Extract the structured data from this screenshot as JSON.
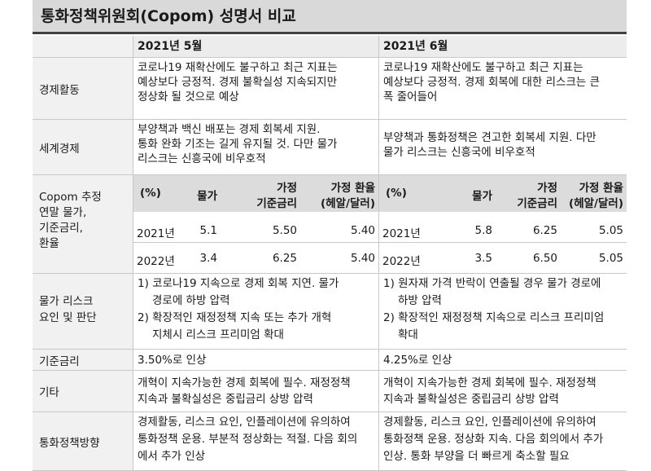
{
  "title": "통화정책위원회(Copom) 성명서 비교",
  "columns": [
    "2021년 5월",
    "2021년 6월"
  ],
  "rows": {
    "econ": {
      "label": "경제활동",
      "may": [
        "코로나19 재확산에도 불구하고 최근 지표는",
        "예상보다 긍정적. 경제 불확실성 지속되지만",
        "정상화 될 것으로 예상"
      ],
      "jun": [
        "코로나19 재확산에도 불구하고 최근 지표는",
        "예상보다 긍정적. 경제 회복에 대한 리스크는 큰",
        "폭 줄어들어"
      ]
    },
    "world": {
      "label": "세계경제",
      "may": [
        "부양책과 백신 배포는 경제 회복세 지원.",
        "통화 완화 기조는 길게 유지될 것. 다만 물가",
        "리스크는 신흥국에 비우호적"
      ],
      "jun": [
        "부양책과 통화정책은 견고한 회복세 지원.  다만",
        "물가 리스크는 신흥국에 비우호적"
      ]
    },
    "copom": {
      "label": [
        "Copom 추정",
        "연말 물가,",
        "기준금리,",
        "환율"
      ],
      "headers": [
        "(%)",
        "물가",
        "가정",
        "기준금리",
        "가정 환율",
        "(헤알/달러)"
      ],
      "may": [
        [
          "2021년",
          "5.1",
          "5.50",
          "5.40"
        ],
        [
          "2022년",
          "3.4",
          "6.25",
          "5.40"
        ]
      ],
      "jun": [
        [
          "2021년",
          "5.8",
          "6.25",
          "5.05"
        ],
        [
          "2022년",
          "3.5",
          "6.50",
          "5.05"
        ]
      ]
    },
    "risk": {
      "label": [
        "물가 리스크",
        "요인 및 판단"
      ],
      "may": [
        "1) 코로나19 지속으로 경제 회복 지연. 물가",
        "경로에 하방 압력",
        "2) 확장적인 재정정책 지속 또는 추가 개혁",
        "지체시 리스크 프리미엄 확대"
      ],
      "jun": [
        "1) 원자재 가격 반락이 연출될 경우 물가 경로에",
        "하방 압력",
        "2) 확장적인 재정정책 지속으로 리스크 프리미엄",
        "확대"
      ]
    },
    "rate": {
      "label": "기준금리",
      "may": "3.50%로 인상",
      "jun": "4.25%로 인상"
    },
    "etc": {
      "label": "기타",
      "may": [
        "개혁이 지속가능한 경제 회복에 필수. 재정정책",
        "지속과 불확실성은 중립금리 상방 압력"
      ],
      "jun": [
        "개혁이 지속가능한 경제 회복에 필수. 재정정책",
        "지속과 불확실성은 중립금리 상방 압력"
      ]
    },
    "policy": {
      "label": "통화정책방향",
      "may": [
        "경제활동, 리스크 요인, 인플레이션에 유의하여",
        "통화정책 운용. 부분적 정상화는 적절. 다음 회의",
        "에서 추가 인상"
      ],
      "jun": [
        "경제활동, 리스크 요인, 인플레이션에 유의하여",
        "통화정책 운용. 정상화 지속. 다음 회의에서 추가",
        "인상. 통화 부양을 더 빠르게 축소할 필요"
      ]
    }
  }
}
